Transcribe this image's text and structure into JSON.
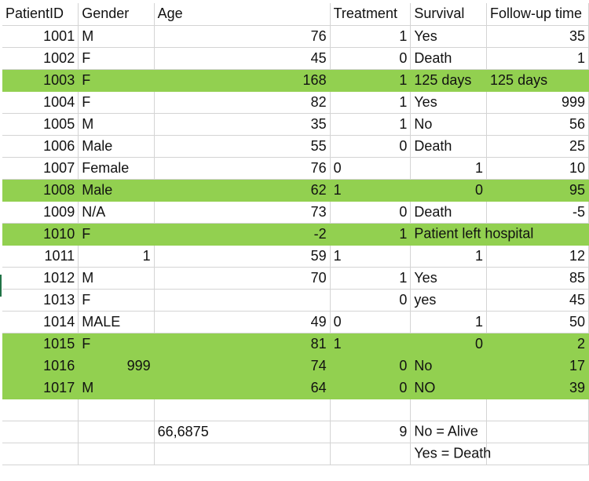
{
  "headers": [
    "PatientID",
    "Gender",
    "Age",
    "Treatment",
    "Survival",
    "Follow-up time"
  ],
  "rows": [
    {
      "id": "1001",
      "gender": "M",
      "age": "76",
      "treatment": "1",
      "survival": "Yes",
      "survival_num": "",
      "followup": "35",
      "highlight": false
    },
    {
      "id": "1002",
      "gender": "F",
      "age": "45",
      "treatment": "0",
      "survival": "Death",
      "survival_num": "",
      "followup": "1",
      "highlight": false
    },
    {
      "id": "1003",
      "gender": "F",
      "age": "168",
      "treatment": "1",
      "survival": "125 days",
      "survival_num": "",
      "followup": "125 days",
      "highlight": true
    },
    {
      "id": "1004",
      "gender": "F",
      "age": "82",
      "treatment": "1",
      "survival": "Yes",
      "survival_num": "",
      "followup": "999",
      "highlight": false
    },
    {
      "id": "1005",
      "gender": "M",
      "age": "35",
      "treatment": "1",
      "survival": "No",
      "survival_num": "",
      "followup": "56",
      "highlight": false
    },
    {
      "id": "1006",
      "gender": "Male",
      "age": "55",
      "treatment": "0",
      "survival": "Death",
      "survival_num": "",
      "followup": "25",
      "highlight": false
    },
    {
      "id": "1007",
      "gender": "Female",
      "age": "76",
      "treatment": "0",
      "survival": "",
      "survival_num": "1",
      "followup": "10",
      "highlight": false
    },
    {
      "id": "1008",
      "gender": "Male",
      "age": "62",
      "treatment": "1",
      "survival": "",
      "survival_num": "0",
      "followup": "95",
      "highlight": true
    },
    {
      "id": "1009",
      "gender": "N/A",
      "age": "73",
      "treatment": "0",
      "survival": "Death",
      "survival_num": "",
      "followup": "-5",
      "highlight": false
    },
    {
      "id": "1010",
      "gender": "F",
      "age": "-2",
      "treatment": "1",
      "survival": "Patient left hospital",
      "survival_num": "",
      "followup": "",
      "highlight": true
    },
    {
      "id": "1011",
      "gender": "",
      "gender_num": "1",
      "age": "59",
      "treatment": "1",
      "survival": "",
      "survival_num": "1",
      "followup": "12",
      "highlight": false
    },
    {
      "id": "1012",
      "gender": "M",
      "age": "70",
      "treatment": "1",
      "survival": "Yes",
      "survival_num": "",
      "followup": "85",
      "highlight": false
    },
    {
      "id": "1013",
      "gender": "F",
      "age": "",
      "treatment": "0",
      "survival": "yes",
      "survival_num": "",
      "followup": "45",
      "highlight": false
    },
    {
      "id": "1014",
      "gender": "MALE",
      "age": "49",
      "treatment": "0",
      "survival": "",
      "survival_num": "1",
      "followup": "50",
      "highlight": false
    },
    {
      "id": "1015",
      "gender": "F",
      "age": "81",
      "treatment": "1",
      "survival": "",
      "survival_num": "0",
      "followup": "2",
      "highlight": true
    },
    {
      "id": "1016",
      "gender": "",
      "gender_num": "999",
      "age": "74",
      "treatment": "0",
      "survival": "No",
      "survival_num": "",
      "followup": "17",
      "highlight": true
    },
    {
      "id": "1017",
      "gender": "M",
      "age": "64",
      "treatment": "0",
      "survival": "NO",
      "survival_num": "",
      "followup": "39",
      "highlight": true
    }
  ],
  "summary": {
    "age_mean": "66,6875",
    "treatment_count": "9",
    "note1": "No = Alive",
    "note2": "Yes = Death"
  },
  "colors": {
    "highlight": "#92d050",
    "grid": "#d4d4d4"
  }
}
